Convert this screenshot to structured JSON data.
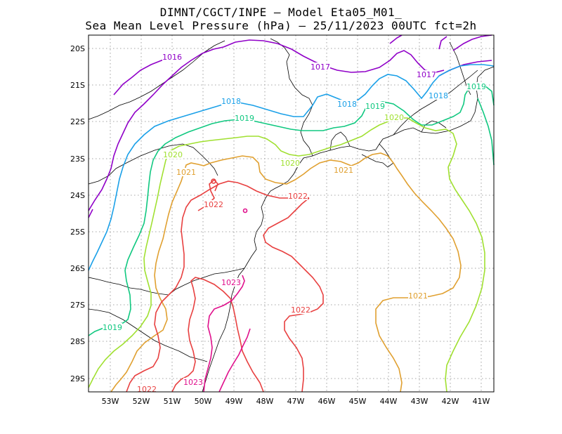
{
  "title_line1": "DIMNT/CGCT/INPE –  Model Eta05_M01_",
  "title_line2": "Sea Mean Level Pressure (hPa) – 25/11/2023 00UTC fct=2h",
  "axes": {
    "lat_labels": [
      "20S",
      "21S",
      "22S",
      "23S",
      "24S",
      "25S",
      "26S",
      "27S",
      "28S",
      "29S"
    ],
    "lon_labels": [
      "53W",
      "52W",
      "51W",
      "50W",
      "49W",
      "48W",
      "47W",
      "46W",
      "45W",
      "44W",
      "43W",
      "42W",
      "41W"
    ],
    "lat_range": [
      "19.6S",
      "29.4S"
    ],
    "lon_range": [
      "53.7W",
      "40.5W"
    ],
    "grid": "dotted"
  },
  "colors": {
    "c1016": "#9000c8",
    "c1017": "#9000c8",
    "c1018": "#1aa0e8",
    "c1019": "#10c880",
    "c1020": "#a0e030",
    "c1021": "#e0a030",
    "c1022": "#e84040",
    "c1023": "#e0108c",
    "coast": "#000000"
  },
  "contour_labels": [
    {
      "text": "1016",
      "color": "c1016"
    },
    {
      "text": "1017",
      "color": "c1017"
    },
    {
      "text": "1017",
      "color": "c1017"
    },
    {
      "text": "1018",
      "color": "c1018"
    },
    {
      "text": "1018",
      "color": "c1018"
    },
    {
      "text": "1018",
      "color": "c1018"
    },
    {
      "text": "1019",
      "color": "c1019"
    },
    {
      "text": "1019",
      "color": "c1019"
    },
    {
      "text": "1019",
      "color": "c1019"
    },
    {
      "text": "1019",
      "color": "c1019"
    },
    {
      "text": "1020",
      "color": "c1020"
    },
    {
      "text": "1020",
      "color": "c1020"
    },
    {
      "text": "1020",
      "color": "c1020"
    },
    {
      "text": "1021",
      "color": "c1021"
    },
    {
      "text": "1021",
      "color": "c1021"
    },
    {
      "text": "1021",
      "color": "c1021"
    },
    {
      "text": "1022",
      "color": "c1022"
    },
    {
      "text": "1022",
      "color": "c1022"
    },
    {
      "text": "1022",
      "color": "c1022"
    },
    {
      "text": "1022",
      "color": "c1022"
    },
    {
      "text": "1023",
      "color": "c1023"
    },
    {
      "text": "1023",
      "color": "c1023"
    }
  ]
}
